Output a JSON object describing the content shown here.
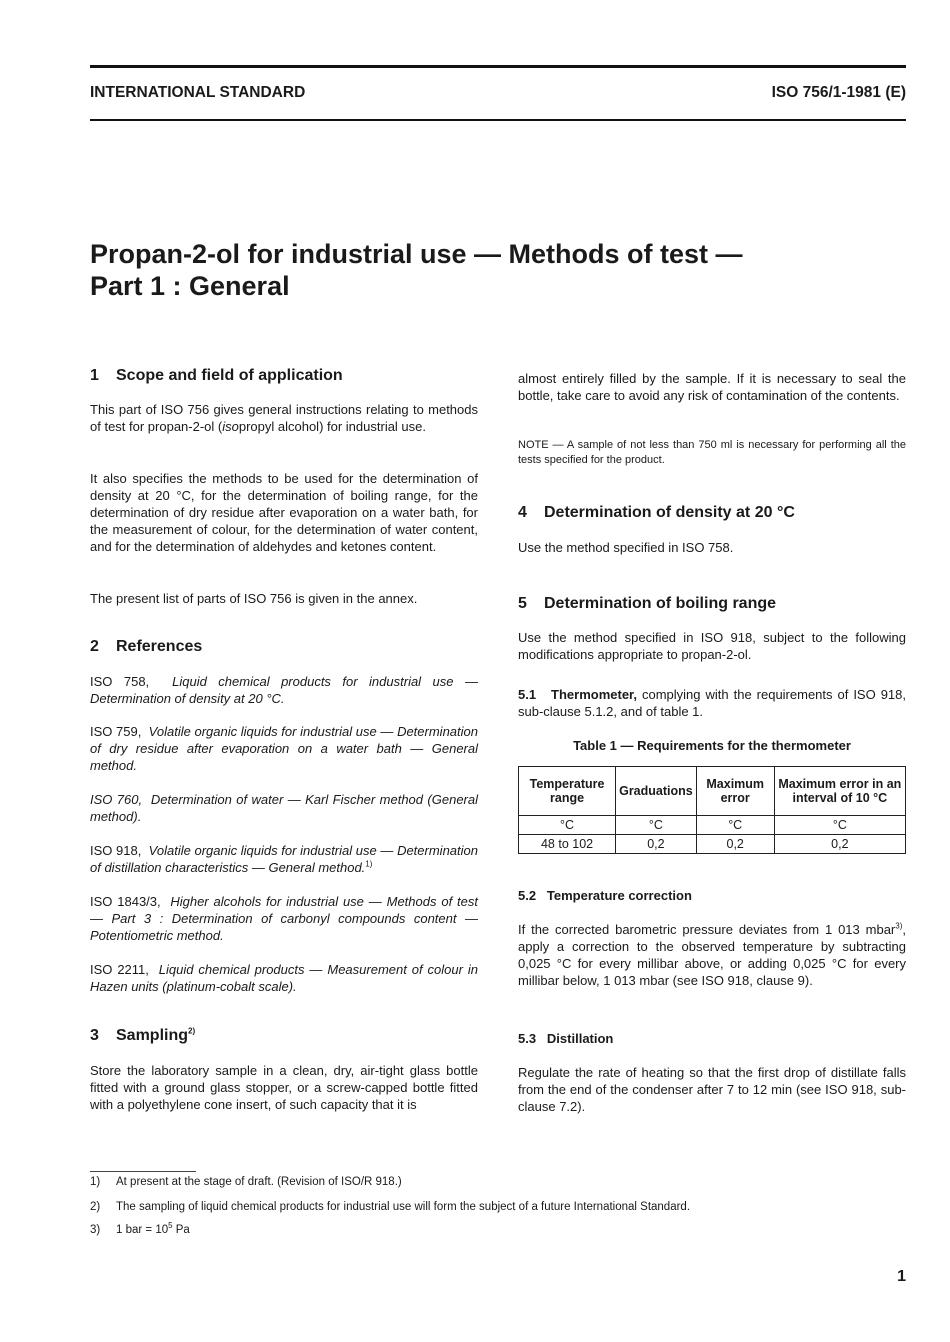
{
  "header": {
    "left": "INTERNATIONAL STANDARD",
    "right": "ISO 756/1-1981 (E)"
  },
  "title": {
    "line1": "Propan-2-ol for industrial use — Methods of test —",
    "line2": "Part 1 : General"
  },
  "s1": {
    "num": "1",
    "title": "Scope and field of application",
    "p1_a": "This part of ISO 756 gives general instructions relating to methods of test for propan-2-ol (",
    "p1_i": "iso",
    "p1_b": "propyl alcohol) for industrial use.",
    "p2": "It also specifies the methods to be used for the determination of density at 20 °C, for the determination of boiling range, for the determination of dry residue after evaporation on a water bath, for the measurement of colour, for the determination of water content, and for the determination of aldehydes and ketones content.",
    "p3": "The present list of parts of ISO 756 is given in the annex."
  },
  "s2": {
    "num": "2",
    "title": "References",
    "refs": [
      {
        "code": "ISO 758,",
        "title": "Liquid chemical products for industrial use — Determination of density at 20 °C.",
        "sup": ""
      },
      {
        "code": "ISO 759,",
        "title": "Volatile organic liquids for industrial use — Determination of dry residue after evaporation on a water bath — General method.",
        "sup": ""
      },
      {
        "code": "ISO 760,",
        "title": "Determination of water — Karl Fischer method (General method).",
        "sup": ""
      },
      {
        "code": "ISO 918,",
        "title": "Volatile organic liquids for industrial use — Determination of distillation characteristics — General method.",
        "sup": "1)"
      },
      {
        "code": "ISO 1843/3,",
        "title": "Higher alcohols for industrial use — Methods of test — Part 3 : Determination of carbonyl compounds content — Potentiometric method.",
        "sup": ""
      },
      {
        "code": "ISO 2211,",
        "title": "Liquid chemical products — Measurement of colour in Hazen units (platinum-cobalt scale).",
        "sup": ""
      }
    ]
  },
  "s3": {
    "num": "3",
    "title": "Sampling",
    "sup": "2)",
    "p1": "Store the laboratory sample in a clean, dry, air-tight glass bottle fitted with a ground glass stopper, or a screw-capped bottle fitted with a polyethylene cone insert, of such capacity that it is almost entirely filled by the sample. If it is necessary to seal the bottle, take care to avoid any risk of contamination of the contents.",
    "p1_cont": "almost entirely filled by the sample. If it is necessary to seal the bottle, take care to avoid any risk of contamination of the contents.",
    "p1_first": "Store the laboratory sample in a clean, dry, air-tight glass bottle fitted with a ground glass stopper, or a screw-capped bottle fitted with a polyethylene cone insert, of such capacity that it is",
    "note": "NOTE — A sample of not less than 750 ml is necessary for performing all the tests specified for the product."
  },
  "s4": {
    "num": "4",
    "title": "Determination of density at 20 °C",
    "p1": "Use the method specified in ISO 758."
  },
  "s5": {
    "num": "5",
    "title": "Determination of boiling range",
    "p1": "Use the method specified in ISO 918, subject to the following modifications appropriate to propan-2-ol.",
    "s51_num": "5.1",
    "s51_title": "Thermometer,",
    "s51_text": " complying with the requirements of ISO 918, sub-clause 5.1.2, and of table 1.",
    "table": {
      "caption": "Table 1 — Requirements for the thermometer",
      "headers": [
        "Temperature range",
        "Graduations",
        "Maximum error",
        "Maximum error in an interval of 10 °C"
      ],
      "rows": [
        [
          "°C",
          "°C",
          "°C",
          "°C"
        ],
        [
          "48 to 102",
          "0,2",
          "0,2",
          "0,2"
        ]
      ]
    },
    "s52_num": "5.2",
    "s52_title": "Temperature correction",
    "s52_a": "If the corrected barometric pressure deviates from 1 013 mbar",
    "s52_sup": "3)",
    "s52_b": ", apply a correction to the observed temperature by subtracting 0,025 °C for every millibar above, or adding 0,025 °C for every millibar below, 1 013 mbar (see ISO 918, clause 9).",
    "s53_num": "5.3",
    "s53_title": "Distillation",
    "s53_text": "Regulate the rate of heating so that the first drop of distillate falls from the end of the condenser after 7 to 12 min (see ISO 918, sub-clause 7.2)."
  },
  "footnotes": [
    {
      "key": "1)",
      "text": "At present at the stage of draft. (Revision of ISO/R 918.)"
    },
    {
      "key": "2)",
      "text": "The sampling of liquid chemical products for industrial use will form the subject of a future International Standard."
    },
    {
      "key": "3)",
      "text_a": "1 bar = 10",
      "text_sup": "5",
      "text_b": " Pa"
    }
  ],
  "page_number": "1"
}
